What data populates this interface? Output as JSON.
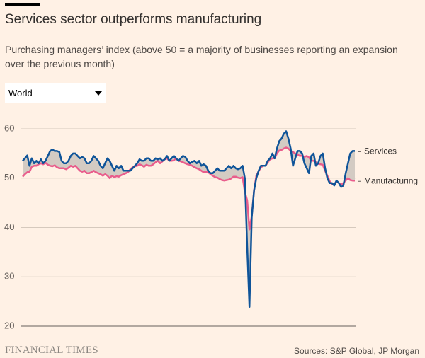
{
  "chart_data": {
    "type": "line",
    "title": "Services sector outperforms manufacturing",
    "subtitle": "Purchasing managers’ index (above 50 = a majority of businesses reporting an expansion over the previous month)",
    "selector": "World",
    "source": "Sources: S&P Global, JP Morgan",
    "brand": "FINANCIAL TIMES",
    "ylim": [
      20,
      60
    ],
    "yticks": [
      20,
      30,
      40,
      50,
      60
    ],
    "grid": true,
    "series": [
      {
        "name": "Services",
        "color": "#0f5499",
        "values": [
          53.5,
          54,
          54.6,
          52.5,
          54,
          53,
          53.5,
          53,
          53.8,
          53,
          53.5,
          54.5,
          55.5,
          55.8,
          55.5,
          55.5,
          55.3,
          53.5,
          53,
          53,
          53.5,
          54.5,
          55,
          55,
          54.5,
          54,
          54.3,
          54,
          53,
          53,
          53.5,
          54.5,
          54,
          53.5,
          52.5,
          52,
          53,
          54,
          53.5,
          52.5,
          51.5,
          52.5,
          52,
          52.5,
          51.5,
          51.5,
          51.5,
          51.5,
          52,
          52.5,
          53,
          53.8,
          53.5,
          53.5,
          54,
          54,
          53.5,
          53.5,
          54,
          53.8,
          54,
          53.5,
          53.8,
          54.5,
          53.5,
          54,
          54.5,
          54,
          53.5,
          54,
          54.5,
          54.3,
          53.5,
          53,
          53.3,
          53.5,
          53,
          53.5,
          52.5,
          52.8,
          52.5,
          51.5,
          51,
          51,
          51.5,
          52,
          51.5,
          51.5,
          51.5,
          52,
          52.5,
          52,
          52.5,
          52,
          51.8,
          52,
          52.5,
          50,
          36,
          23.9,
          42,
          47.5,
          50,
          51.5,
          52.5,
          52.5,
          52.5,
          53.5,
          54,
          55,
          54,
          56,
          57.5,
          58,
          59,
          59.5,
          58,
          56,
          52.5,
          54,
          55.5,
          55.5,
          55,
          53,
          52,
          51,
          54.5,
          55,
          52.5,
          53,
          54.5,
          55,
          52,
          50,
          49,
          49,
          48.5,
          49.5,
          49,
          48.2,
          48.5,
          51,
          53,
          55,
          55.5,
          55.5
        ]
      },
      {
        "name": "Manufacturing",
        "color": "#e95d8c",
        "values": [
          50.3,
          50.8,
          51.2,
          51.3,
          52.3,
          52.5,
          52.5,
          52.8,
          53,
          52.8,
          53.1,
          52.7,
          52.5,
          52.4,
          52.6,
          52.2,
          52,
          52,
          52,
          51.8,
          52.1,
          52.5,
          52.3,
          52.5,
          52,
          51.5,
          51.3,
          51.5,
          51,
          51,
          51.2,
          51.5,
          51.2,
          51,
          50.8,
          50.5,
          50.8,
          50.5,
          50,
          50.5,
          50.2,
          50.4,
          50.3,
          50.6,
          50.8,
          51,
          51.2,
          51.8,
          52.2,
          52.4,
          52.5,
          52.8,
          52.6,
          52.3,
          52.7,
          52.5,
          52.5,
          52.8,
          53.2,
          53.5,
          53,
          53.4,
          53.8,
          54,
          53.5,
          53.5,
          53.6,
          54,
          53.5,
          53.4,
          53.2,
          53,
          52.8,
          52.7,
          52.5,
          52.2,
          52,
          51.8,
          51.5,
          51.2,
          51.3,
          51.2,
          50.8,
          50.5,
          50.2,
          50.1,
          49.8,
          49.6,
          49.5,
          49.6,
          49.7,
          49.9,
          50.3,
          50.3,
          50.1,
          50,
          50.2,
          47.2,
          45.5,
          39.6,
          42.3,
          47.5,
          50.5,
          51.4,
          52.2,
          52.5,
          52.5,
          53.2,
          53.8,
          54,
          54,
          55,
          55.6,
          55.7,
          56,
          56.2,
          56,
          55.5,
          55.3,
          55,
          54.8,
          54.5,
          54.6,
          54.3,
          54.5,
          54.2,
          53.5,
          53.5,
          53.2,
          52.9,
          52.8,
          52.7,
          51.5,
          50.5,
          49.4,
          48.8,
          48.8,
          49.3,
          49,
          48.7,
          49,
          49.5,
          50,
          49.6,
          49.5,
          49.5
        ]
      }
    ]
  }
}
